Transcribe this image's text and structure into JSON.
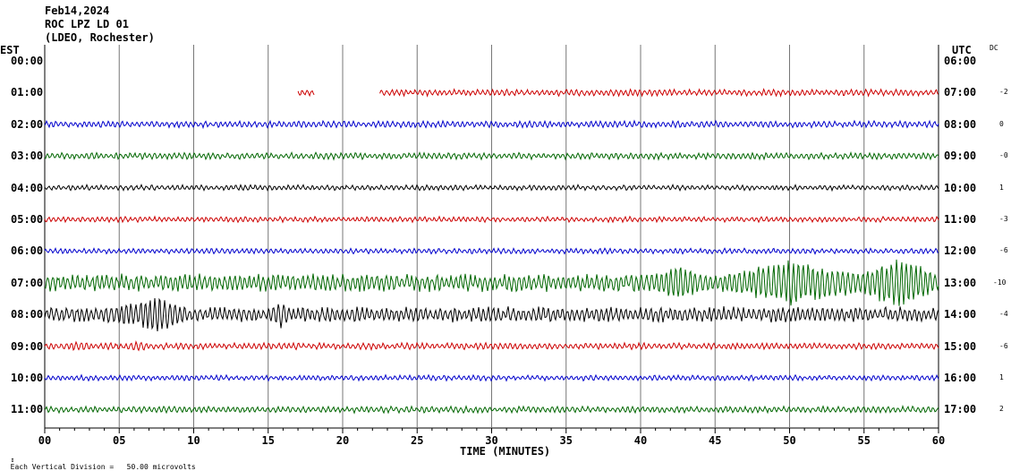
{
  "header": {
    "date": "Feb14,2024",
    "station": "ROC LPZ LD 01",
    "network": "(LDEO, Rochester)"
  },
  "chart_data": {
    "type": "line",
    "title": "Feb14,2024",
    "left_axis_title": "EST",
    "right_axis_title": "UTC",
    "dc_title": "DC",
    "xlabel": "TIME (MINUTES)",
    "xlim": [
      0,
      60
    ],
    "x_ticks": [
      "00",
      "05",
      "10",
      "15",
      "20",
      "25",
      "30",
      "35",
      "40",
      "45",
      "50",
      "55",
      "60"
    ],
    "footnote": "Each Vertical Division =   50.00 microvolts",
    "grid": true,
    "rows": [
      {
        "est": "00:00",
        "utc": "06:00",
        "dc": "",
        "color": "#ff0000",
        "amp": 0,
        "segments": []
      },
      {
        "est": "01:00",
        "utc": "07:00",
        "dc": "-2",
        "color": "#cc0000",
        "amp": 3,
        "segments": [
          [
            17.0,
            18.1
          ],
          [
            22.5,
            60
          ]
        ]
      },
      {
        "est": "02:00",
        "utc": "08:00",
        "dc": "0",
        "color": "#0000cc",
        "amp": 3,
        "segments": [
          [
            0,
            60
          ]
        ]
      },
      {
        "est": "03:00",
        "utc": "09:00",
        "dc": "-0",
        "color": "#006600",
        "amp": 3,
        "segments": [
          [
            0,
            60
          ]
        ]
      },
      {
        "est": "04:00",
        "utc": "10:00",
        "dc": "1",
        "color": "#000000",
        "amp": 2.5,
        "segments": [
          [
            0,
            60
          ]
        ]
      },
      {
        "est": "05:00",
        "utc": "11:00",
        "dc": "-3",
        "color": "#cc0000",
        "amp": 2.5,
        "segments": [
          [
            0,
            60
          ]
        ]
      },
      {
        "est": "06:00",
        "utc": "12:00",
        "dc": "-6",
        "color": "#0000cc",
        "amp": 2.5,
        "segments": [
          [
            0,
            60
          ]
        ]
      },
      {
        "est": "07:00",
        "utc": "13:00",
        "dc": "-10",
        "color": "#006600",
        "amp": 8,
        "segments": [
          [
            0,
            60
          ]
        ],
        "bursts": [
          [
            40.5,
            44.5,
            22
          ],
          [
            45.5,
            55,
            28
          ],
          [
            54.5,
            60,
            30
          ]
        ]
      },
      {
        "est": "08:00",
        "utc": "14:00",
        "dc": "-4",
        "color": "#000000",
        "amp": 7,
        "segments": [
          [
            0,
            60
          ]
        ],
        "bursts": [
          [
            3,
            8.5,
            14
          ],
          [
            5.5,
            9.5,
            22
          ],
          [
            15,
            16.5,
            18
          ]
        ]
      },
      {
        "est": "09:00",
        "utc": "15:00",
        "dc": "-6",
        "color": "#cc0000",
        "amp": 3,
        "segments": [
          [
            0,
            60
          ]
        ],
        "bursts": [
          [
            1,
            3.5,
            6
          ],
          [
            5.5,
            7,
            7
          ]
        ]
      },
      {
        "est": "10:00",
        "utc": "16:00",
        "dc": "1",
        "color": "#0000cc",
        "amp": 2.5,
        "segments": [
          [
            0,
            60
          ]
        ]
      },
      {
        "est": "11:00",
        "utc": "17:00",
        "dc": "2",
        "color": "#006600",
        "amp": 3,
        "segments": [
          [
            0,
            60
          ]
        ]
      }
    ]
  }
}
